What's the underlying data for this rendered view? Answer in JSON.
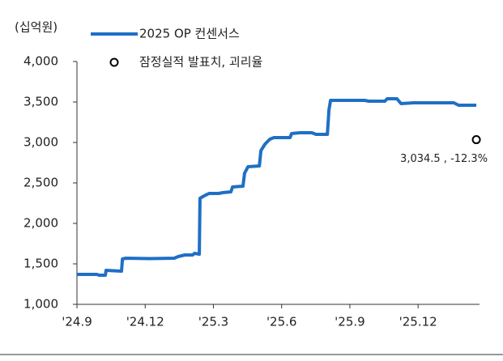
{
  "chart_data": {
    "type": "line",
    "unit_label": "(십억원)",
    "xlim": [
      0,
      17.7
    ],
    "ylim": [
      1000,
      4000
    ],
    "yticks": [
      {
        "value": 1000,
        "label": "1,000"
      },
      {
        "value": 1500,
        "label": "1,500"
      },
      {
        "value": 2000,
        "label": "2,000"
      },
      {
        "value": 2500,
        "label": "2,500"
      },
      {
        "value": 3000,
        "label": "3,000"
      },
      {
        "value": 3500,
        "label": "3,500"
      },
      {
        "value": 4000,
        "label": "4,000"
      }
    ],
    "xticks": [
      {
        "value": 0,
        "label": "'24.9"
      },
      {
        "value": 3,
        "label": "'24.12"
      },
      {
        "value": 6,
        "label": "'25.3"
      },
      {
        "value": 9,
        "label": "'25.6"
      },
      {
        "value": 12,
        "label": "'25.9"
      },
      {
        "value": 15,
        "label": "'25.12"
      }
    ],
    "series": [
      {
        "name": "2025 OP 컨센서스",
        "color": "#1f6fc5",
        "x": [
          0,
          0.89,
          0.96,
          1.25,
          1.28,
          1.96,
          2.0,
          2.14,
          3.21,
          4.28,
          4.45,
          4.74,
          5.09,
          5.17,
          5.38,
          5.41,
          5.59,
          5.81,
          6.23,
          6.41,
          6.77,
          6.84,
          7.3,
          7.37,
          7.52,
          8.02,
          8.09,
          8.27,
          8.48,
          8.66,
          9.37,
          9.44,
          9.8,
          10.33,
          10.51,
          11.01,
          11.08,
          11.15,
          12.65,
          12.83,
          13.54,
          13.64,
          14.07,
          14.25,
          14.78,
          16.57,
          16.78,
          17.56
        ],
        "values": [
          1370,
          1370,
          1360,
          1360,
          1420,
          1410,
          1560,
          1570,
          1565,
          1570,
          1590,
          1610,
          1610,
          1630,
          1620,
          2310,
          2340,
          2370,
          2370,
          2380,
          2390,
          2450,
          2460,
          2620,
          2700,
          2710,
          2900,
          2980,
          3040,
          3060,
          3060,
          3110,
          3120,
          3120,
          3100,
          3100,
          3400,
          3520,
          3520,
          3510,
          3510,
          3540,
          3540,
          3480,
          3490,
          3490,
          3460,
          3460
        ]
      },
      {
        "name": "잠정실적 발표치, 괴리율",
        "type": "scatter",
        "color": "#000000",
        "x": [
          17.56
        ],
        "values": [
          3034.5
        ],
        "value_labels": [
          "3,034.5 , -12.3%"
        ]
      }
    ]
  }
}
